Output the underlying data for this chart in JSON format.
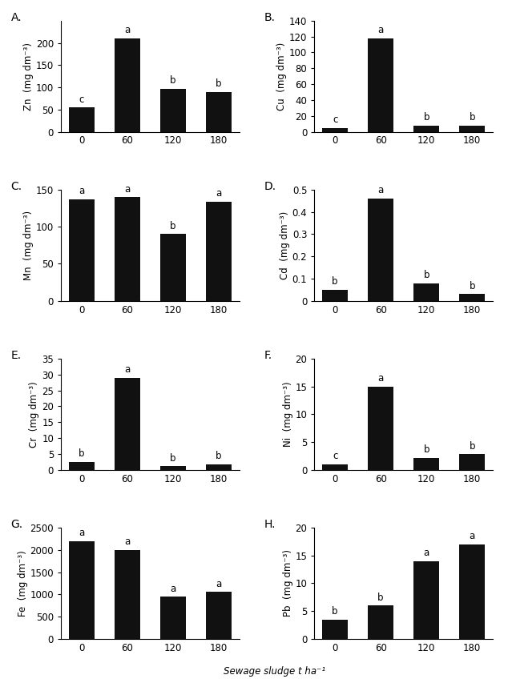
{
  "panels": [
    {
      "label": "A.",
      "ylabel": "Zn  (mg dm⁻³)",
      "values": [
        55,
        210,
        97,
        90
      ],
      "ylim": [
        0,
        250
      ],
      "yticks": [
        0,
        50,
        100,
        150,
        200
      ],
      "sig_labels": [
        "c",
        "a",
        "b",
        "b"
      ]
    },
    {
      "label": "B.",
      "ylabel": "Cu  (mg dm⁻³)",
      "values": [
        5,
        118,
        8,
        8
      ],
      "ylim": [
        0,
        140
      ],
      "yticks": [
        0,
        20,
        40,
        60,
        80,
        100,
        120,
        140
      ],
      "sig_labels": [
        "c",
        "a",
        "b",
        "b"
      ]
    },
    {
      "label": "C.",
      "ylabel": "Mn  (mg dm⁻³)",
      "values": [
        137,
        140,
        90,
        134
      ],
      "ylim": [
        0,
        150
      ],
      "yticks": [
        0,
        50,
        100,
        150
      ],
      "sig_labels": [
        "a",
        "a",
        "b",
        "a"
      ]
    },
    {
      "label": "D.",
      "ylabel": "Cd  (mg dm⁻³)",
      "values": [
        0.05,
        0.46,
        0.08,
        0.03
      ],
      "ylim": [
        0,
        0.5
      ],
      "yticks": [
        0.0,
        0.1,
        0.2,
        0.3,
        0.4,
        0.5
      ],
      "ytick_labels": [
        "0",
        "0.1",
        "0.2",
        "0.3",
        "0.4",
        "0.5"
      ],
      "sig_labels": [
        "b",
        "a",
        "b",
        "b"
      ]
    },
    {
      "label": "E.",
      "ylabel": "Cr  (mg dm⁻³)",
      "values": [
        2.5,
        29,
        1.2,
        1.8
      ],
      "ylim": [
        0,
        35
      ],
      "yticks": [
        0,
        5,
        10,
        15,
        20,
        25,
        30,
        35
      ],
      "sig_labels": [
        "b",
        "a",
        "b",
        "b"
      ]
    },
    {
      "label": "F.",
      "ylabel": "Ni  (mg dm⁻³)",
      "values": [
        1,
        15,
        2.2,
        2.8
      ],
      "ylim": [
        0,
        20
      ],
      "yticks": [
        0,
        5,
        10,
        15,
        20
      ],
      "sig_labels": [
        "c",
        "a",
        "b",
        "b"
      ]
    },
    {
      "label": "G.",
      "ylabel": "Fe  (mg dm⁻³)",
      "values": [
        2200,
        2000,
        950,
        1060
      ],
      "ylim": [
        0,
        2500
      ],
      "yticks": [
        0,
        500,
        1000,
        1500,
        2000,
        2500
      ],
      "sig_labels": [
        "a",
        "a",
        "a",
        "a"
      ]
    },
    {
      "label": "H.",
      "ylabel": "Pb  (mg dm⁻³)",
      "values": [
        3.5,
        6,
        14,
        17
      ],
      "ylim": [
        0,
        20
      ],
      "yticks": [
        0,
        5,
        10,
        15,
        20
      ],
      "sig_labels": [
        "b",
        "b",
        "a",
        "a"
      ]
    }
  ],
  "xtick_labels": [
    "0",
    "60",
    "120",
    "180"
  ],
  "bar_color": "#111111",
  "bar_width": 0.55,
  "xlabel": "Sewage sludge t ha⁻¹",
  "font_size": 8.5,
  "label_font_size": 10
}
